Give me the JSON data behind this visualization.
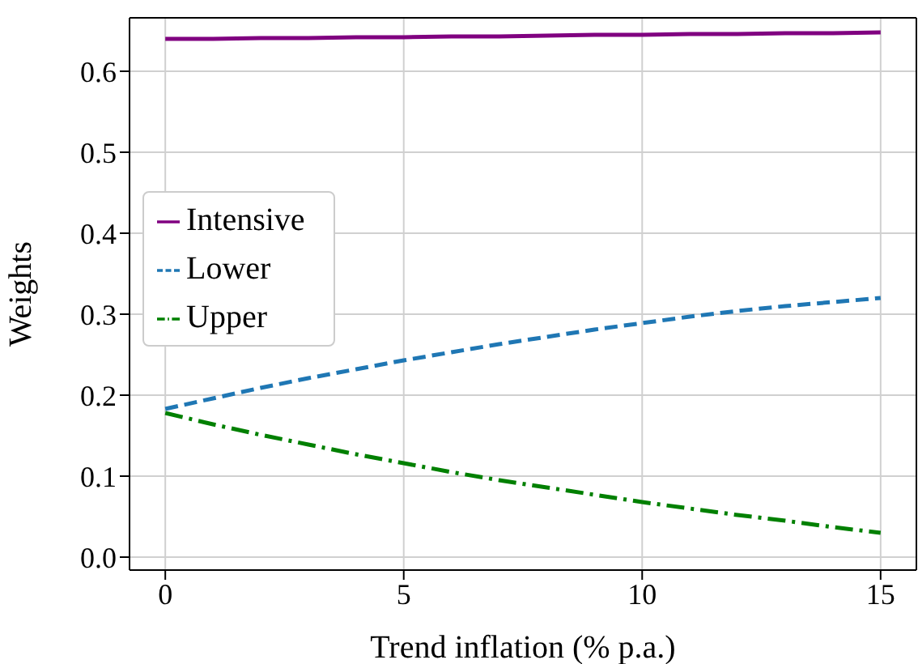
{
  "chart_data": {
    "type": "line",
    "xlabel": "Trend inflation (% p.a.)",
    "ylabel": "Weights",
    "x": [
      0,
      1,
      2,
      3,
      4,
      5,
      6,
      7,
      8,
      9,
      10,
      11,
      12,
      13,
      14,
      15
    ],
    "series": [
      {
        "name": "Intensive",
        "color": "#800080",
        "line_style": "solid",
        "values": [
          0.64,
          0.64,
          0.641,
          0.641,
          0.642,
          0.642,
          0.643,
          0.643,
          0.644,
          0.645,
          0.645,
          0.646,
          0.646,
          0.647,
          0.647,
          0.648
        ]
      },
      {
        "name": "Lower",
        "color": "#1f77b4",
        "line_style": "dashed",
        "values": [
          0.183,
          0.196,
          0.209,
          0.221,
          0.232,
          0.243,
          0.253,
          0.263,
          0.272,
          0.281,
          0.289,
          0.297,
          0.304,
          0.31,
          0.315,
          0.32
        ]
      },
      {
        "name": "Upper",
        "color": "#008000",
        "line_style": "dashdot",
        "values": [
          0.178,
          0.164,
          0.151,
          0.139,
          0.127,
          0.116,
          0.105,
          0.095,
          0.086,
          0.077,
          0.068,
          0.06,
          0.052,
          0.045,
          0.037,
          0.03
        ]
      }
    ],
    "xlim": [
      -0.75,
      15.75
    ],
    "xticks": [
      0,
      5,
      10,
      15
    ],
    "ylim": [
      -0.016,
      0.666
    ],
    "yticks": [
      {
        "value": 0,
        "label": "0.0"
      },
      0.1,
      0.2,
      0.3,
      0.4,
      0.5,
      0.6
    ],
    "grid": true,
    "legend": "center left"
  }
}
